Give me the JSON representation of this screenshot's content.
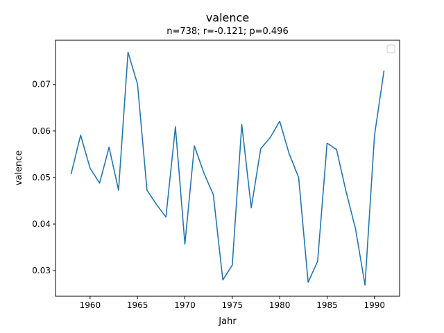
{
  "chart_data": {
    "type": "line",
    "title": "valence",
    "subtitle": "n=738; r=-0.121; p=0.496",
    "xlabel": "Jahr",
    "ylabel": "valence",
    "xlim": [
      1956.35,
      1992.65
    ],
    "ylim": [
      0.0245,
      0.0795
    ],
    "x_ticks": [
      1960,
      1965,
      1970,
      1975,
      1980,
      1985,
      1990
    ],
    "y_ticks": [
      0.03,
      0.04,
      0.05,
      0.06,
      0.07
    ],
    "x_tick_labels": [
      "1960",
      "1965",
      "1970",
      "1975",
      "1980",
      "1985",
      "1990"
    ],
    "y_tick_labels": [
      "0.03",
      "0.04",
      "0.05",
      "0.06",
      "0.07"
    ],
    "grid": false,
    "legend": {
      "placement": "top-right",
      "entries": []
    },
    "series": [
      {
        "color": "#1f77b4",
        "x": [
          1958,
          1959,
          1960,
          1961,
          1962,
          1963,
          1964,
          1965,
          1966,
          1967,
          1968,
          1969,
          1970,
          1971,
          1972,
          1973,
          1974,
          1975,
          1976,
          1977,
          1978,
          1979,
          1980,
          1981,
          1982,
          1983,
          1984,
          1985,
          1986,
          1987,
          1988,
          1989,
          1990,
          1991
        ],
        "y": [
          0.0508,
          0.0591,
          0.052,
          0.0488,
          0.0565,
          0.0473,
          0.0769,
          0.0701,
          0.0473,
          0.0442,
          0.0415,
          0.0609,
          0.0357,
          0.0568,
          0.051,
          0.0463,
          0.028,
          0.0312,
          0.0614,
          0.0435,
          0.0562,
          0.0586,
          0.0621,
          0.0551,
          0.05,
          0.0275,
          0.032,
          0.0574,
          0.056,
          0.047,
          0.039,
          0.0269,
          0.059,
          0.0729
        ]
      }
    ]
  }
}
